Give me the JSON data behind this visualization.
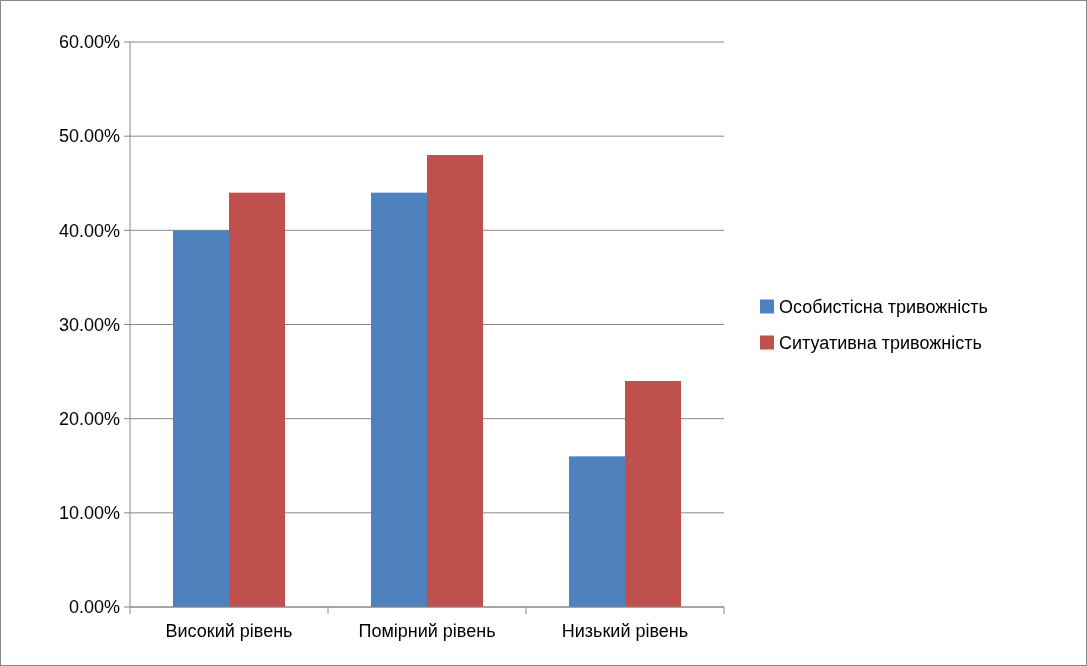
{
  "chart_data": {
    "type": "bar",
    "categories": [
      "Високий рівень",
      "Помірний рівень",
      "Низький рівень"
    ],
    "series": [
      {
        "name": "Особистісна тривожність",
        "color": "#4f81bd",
        "values": [
          40,
          44,
          16
        ]
      },
      {
        "name": "Ситуативна тривожність",
        "color": "#c0504d",
        "values": [
          44,
          48,
          24
        ]
      }
    ],
    "ylim": [
      0,
      60
    ],
    "yticks": [
      {
        "value": 0,
        "label": "0.00%"
      },
      {
        "value": 10,
        "label": "10.00%"
      },
      {
        "value": 20,
        "label": "20.00%"
      },
      {
        "value": 30,
        "label": "30.00%"
      },
      {
        "value": 40,
        "label": "40.00%"
      },
      {
        "value": 50,
        "label": "50.00%"
      },
      {
        "value": 60,
        "label": "60.00%"
      }
    ],
    "grid": "y",
    "legend": "right"
  }
}
